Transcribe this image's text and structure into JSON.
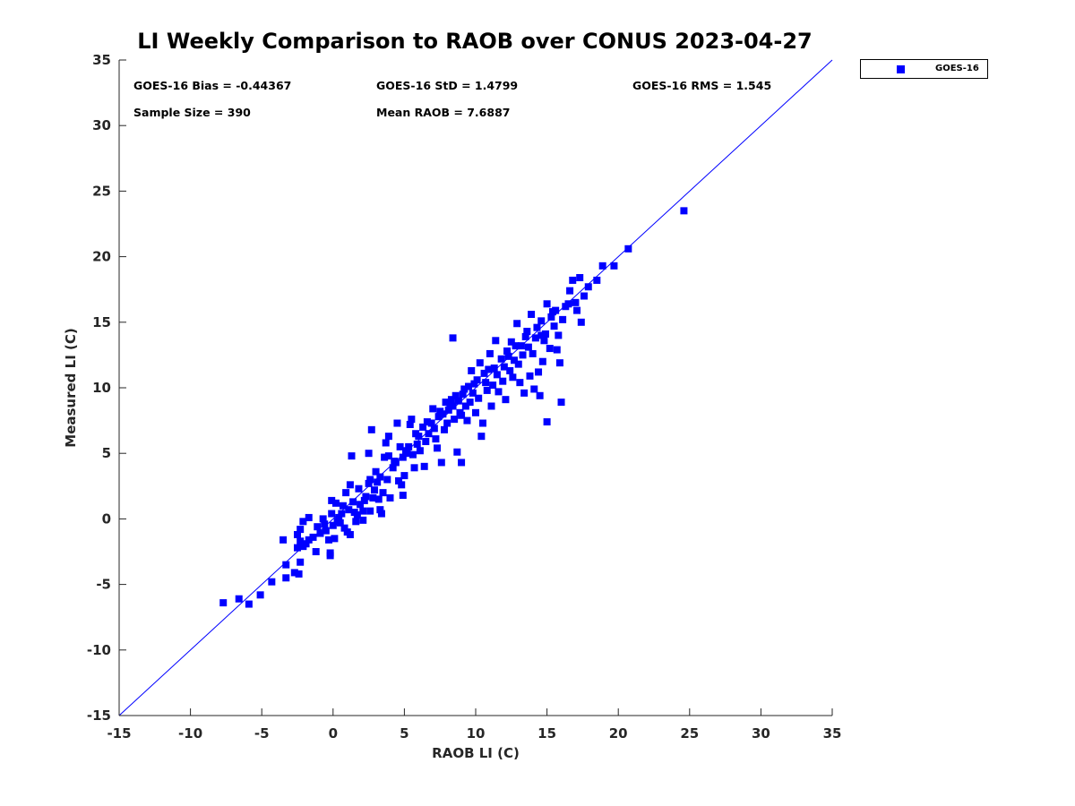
{
  "chart_data": {
    "type": "scatter",
    "title": "LI Weekly Comparison to RAOB over CONUS 2023-04-27",
    "xlabel": "RAOB LI (C)",
    "ylabel": "Measured LI (C)",
    "xlim": [
      -15,
      35
    ],
    "ylim": [
      -15,
      35
    ],
    "xticks": [
      -15,
      -10,
      -5,
      0,
      5,
      10,
      15,
      20,
      25,
      30,
      35
    ],
    "yticks": [
      -15,
      -10,
      -5,
      0,
      5,
      10,
      15,
      20,
      25,
      30,
      35
    ],
    "reference_line": "y = x",
    "marker_color": "#0000ff",
    "stats": {
      "bias": "GOES-16 Bias = -0.44367",
      "std": "GOES-16 StD = 1.4799",
      "rms": "GOES-16 RMS = 1.545",
      "sample_size": "Sample Size = 390",
      "mean_raob": "Mean RAOB = 7.6887"
    },
    "series": [
      {
        "name": "GOES-16",
        "points": [
          [
            -7.7,
            -6.4
          ],
          [
            -6.6,
            -6.1
          ],
          [
            -5.9,
            -6.5
          ],
          [
            -5.1,
            -5.8
          ],
          [
            -4.3,
            -4.8
          ],
          [
            -3.3,
            -4.5
          ],
          [
            -3.3,
            -3.5
          ],
          [
            -3.5,
            -1.6
          ],
          [
            -2.7,
            -4.1
          ],
          [
            -2.4,
            -4.2
          ],
          [
            -2.3,
            -3.3
          ],
          [
            -2.5,
            -2.2
          ],
          [
            -2.3,
            -1.7
          ],
          [
            -2.1,
            -2.1
          ],
          [
            -1.9,
            -1.9
          ],
          [
            -1.7,
            -1.6
          ],
          [
            -2.5,
            -1.2
          ],
          [
            -2.3,
            -0.8
          ],
          [
            -2.1,
            -0.2
          ],
          [
            -1.7,
            0.1
          ],
          [
            -1.4,
            -1.4
          ],
          [
            -1.2,
            -2.5
          ],
          [
            -1.1,
            -0.6
          ],
          [
            -0.9,
            -1.1
          ],
          [
            -0.7,
            0.0
          ],
          [
            -0.6,
            -0.4
          ],
          [
            -0.3,
            -1.6
          ],
          [
            -0.2,
            -2.6
          ],
          [
            -0.2,
            -2.8
          ],
          [
            0.0,
            -0.5
          ],
          [
            -0.1,
            0.4
          ],
          [
            0.1,
            -1.5
          ],
          [
            0.2,
            1.2
          ],
          [
            -0.1,
            1.4
          ],
          [
            0.3,
            -0.2
          ],
          [
            0.5,
            -0.3
          ],
          [
            0.6,
            0.4
          ],
          [
            0.8,
            -0.7
          ],
          [
            1.0,
            -1.0
          ],
          [
            1.2,
            -1.2
          ],
          [
            1.1,
            0.7
          ],
          [
            0.9,
            2.0
          ],
          [
            1.2,
            2.6
          ],
          [
            1.4,
            1.3
          ],
          [
            1.5,
            0.5
          ],
          [
            1.7,
            0.3
          ],
          [
            1.9,
            1.1
          ],
          [
            1.3,
            4.8
          ],
          [
            1.6,
            -0.2
          ],
          [
            2.1,
            0.6
          ],
          [
            2.3,
            1.7
          ],
          [
            2.5,
            2.7
          ],
          [
            2.1,
            -0.1
          ],
          [
            2.6,
            0.6
          ],
          [
            2.8,
            1.6
          ],
          [
            2.9,
            2.2
          ],
          [
            2.6,
            3.0
          ],
          [
            2.5,
            5.0
          ],
          [
            2.7,
            6.8
          ],
          [
            3.1,
            2.8
          ],
          [
            3.2,
            1.5
          ],
          [
            3.3,
            0.7
          ],
          [
            3.4,
            0.4
          ],
          [
            3.5,
            2.0
          ],
          [
            3.3,
            3.2
          ],
          [
            3.6,
            4.7
          ],
          [
            3.7,
            5.8
          ],
          [
            3.9,
            6.3
          ],
          [
            3.8,
            3.0
          ],
          [
            4.0,
            1.6
          ],
          [
            4.2,
            3.9
          ],
          [
            4.3,
            4.4
          ],
          [
            4.4,
            4.3
          ],
          [
            4.5,
            7.3
          ],
          [
            4.6,
            2.9
          ],
          [
            4.8,
            2.6
          ],
          [
            4.9,
            4.7
          ],
          [
            5.0,
            3.3
          ],
          [
            4.9,
            1.8
          ],
          [
            5.1,
            5.2
          ],
          [
            5.3,
            5.5
          ],
          [
            5.4,
            7.2
          ],
          [
            5.5,
            7.6
          ],
          [
            5.6,
            4.9
          ],
          [
            5.7,
            3.9
          ],
          [
            5.8,
            6.5
          ],
          [
            5.9,
            5.7
          ],
          [
            6.1,
            5.2
          ],
          [
            6.3,
            7.0
          ],
          [
            6.5,
            5.9
          ],
          [
            6.4,
            4.0
          ],
          [
            6.7,
            6.5
          ],
          [
            6.9,
            7.3
          ],
          [
            7.0,
            8.4
          ],
          [
            7.2,
            6.1
          ],
          [
            7.3,
            5.4
          ],
          [
            7.4,
            7.8
          ],
          [
            7.6,
            4.3
          ],
          [
            7.7,
            8.0
          ],
          [
            7.8,
            6.8
          ],
          [
            7.9,
            8.9
          ],
          [
            8.0,
            7.3
          ],
          [
            8.1,
            8.3
          ],
          [
            8.3,
            9.1
          ],
          [
            8.4,
            8.6
          ],
          [
            8.5,
            7.6
          ],
          [
            8.6,
            9.4
          ],
          [
            8.4,
            13.8
          ],
          [
            8.7,
            5.1
          ],
          [
            8.9,
            8.1
          ],
          [
            9.0,
            7.9
          ],
          [
            9.0,
            4.3
          ],
          [
            9.2,
            9.9
          ],
          [
            9.3,
            8.6
          ],
          [
            9.4,
            7.5
          ],
          [
            9.5,
            10.1
          ],
          [
            9.6,
            8.9
          ],
          [
            9.7,
            11.3
          ],
          [
            9.8,
            9.6
          ],
          [
            10.0,
            8.1
          ],
          [
            10.1,
            10.6
          ],
          [
            10.2,
            9.2
          ],
          [
            10.3,
            11.9
          ],
          [
            10.5,
            7.3
          ],
          [
            10.4,
            6.3
          ],
          [
            10.7,
            10.4
          ],
          [
            10.8,
            9.8
          ],
          [
            10.9,
            11.4
          ],
          [
            11.0,
            12.6
          ],
          [
            11.1,
            8.6
          ],
          [
            11.2,
            10.2
          ],
          [
            11.4,
            13.6
          ],
          [
            11.5,
            11.0
          ],
          [
            11.6,
            9.7
          ],
          [
            11.8,
            12.2
          ],
          [
            11.9,
            10.5
          ],
          [
            12.0,
            11.6
          ],
          [
            12.1,
            9.1
          ],
          [
            12.2,
            12.8
          ],
          [
            12.4,
            11.3
          ],
          [
            12.5,
            13.5
          ],
          [
            12.6,
            10.8
          ],
          [
            12.7,
            12.1
          ],
          [
            12.9,
            14.9
          ],
          [
            13.0,
            11.8
          ],
          [
            13.1,
            10.4
          ],
          [
            13.2,
            13.2
          ],
          [
            13.3,
            12.5
          ],
          [
            13.4,
            9.6
          ],
          [
            13.6,
            14.3
          ],
          [
            13.7,
            13.1
          ],
          [
            13.8,
            10.9
          ],
          [
            13.9,
            15.6
          ],
          [
            14.0,
            12.6
          ],
          [
            14.1,
            9.9
          ],
          [
            14.2,
            13.8
          ],
          [
            14.3,
            14.6
          ],
          [
            14.4,
            11.2
          ],
          [
            14.5,
            9.4
          ],
          [
            14.6,
            15.1
          ],
          [
            14.7,
            12.0
          ],
          [
            14.8,
            13.6
          ],
          [
            14.9,
            14.1
          ],
          [
            15.0,
            16.4
          ],
          [
            15.0,
            7.4
          ],
          [
            15.2,
            13.0
          ],
          [
            15.3,
            15.4
          ],
          [
            15.5,
            14.7
          ],
          [
            15.6,
            15.9
          ],
          [
            15.7,
            12.9
          ],
          [
            15.8,
            14.0
          ],
          [
            15.9,
            11.9
          ],
          [
            16.0,
            8.9
          ],
          [
            16.1,
            15.2
          ],
          [
            16.3,
            16.2
          ],
          [
            16.5,
            16.4
          ],
          [
            16.6,
            17.4
          ],
          [
            16.8,
            18.2
          ],
          [
            17.0,
            16.5
          ],
          [
            17.1,
            15.9
          ],
          [
            17.3,
            18.4
          ],
          [
            17.4,
            15.0
          ],
          [
            17.6,
            17.0
          ],
          [
            17.9,
            17.7
          ],
          [
            18.5,
            18.2
          ],
          [
            18.9,
            19.3
          ],
          [
            19.7,
            19.3
          ],
          [
            20.7,
            20.6
          ],
          [
            24.6,
            23.5
          ],
          [
            -0.5,
            -0.9
          ],
          [
            0.4,
            0.1
          ],
          [
            0.7,
            1.0
          ],
          [
            1.8,
            2.3
          ],
          [
            2.2,
            1.4
          ],
          [
            3.0,
            3.6
          ],
          [
            3.9,
            4.8
          ],
          [
            4.7,
            5.5
          ],
          [
            5.2,
            5.0
          ],
          [
            6.0,
            6.3
          ],
          [
            6.6,
            7.4
          ],
          [
            7.1,
            6.9
          ],
          [
            7.5,
            8.2
          ],
          [
            8.2,
            8.7
          ],
          [
            8.8,
            9.0
          ],
          [
            9.1,
            9.5
          ],
          [
            9.9,
            10.3
          ],
          [
            10.6,
            11.1
          ],
          [
            11.3,
            11.5
          ],
          [
            12.3,
            12.4
          ],
          [
            12.8,
            13.2
          ],
          [
            13.5,
            13.9
          ],
          [
            14.6,
            14.0
          ],
          [
            15.4,
            15.8
          ]
        ]
      }
    ]
  },
  "legend": {
    "label": "GOES-16"
  }
}
